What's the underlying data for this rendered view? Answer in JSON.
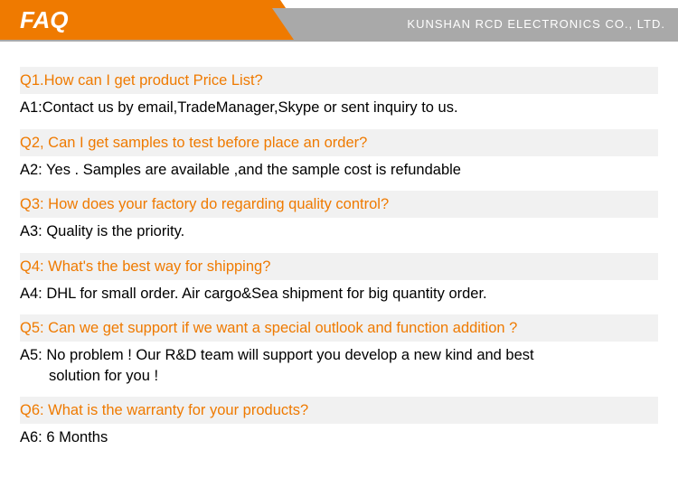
{
  "header": {
    "title": "FAQ",
    "company": "KUNSHAN RCD ELECTRONICS CO., LTD."
  },
  "colors": {
    "accent": "#ef7a00",
    "gray": "#a9a9a9",
    "q_bg": "#f1f1f1",
    "text": "#000000",
    "white": "#ffffff"
  },
  "faqs": [
    {
      "q": "Q1.How can I get product Price List?",
      "a": "A1:Contact us by email,TradeManager,Skype or sent inquiry to us."
    },
    {
      "q": "Q2, Can I get samples to test before place an order?",
      "a": "A2: Yes . Samples are available ,and the sample cost is refundable"
    },
    {
      "q": "Q3: How does your factory do regarding quality control?",
      "a": "A3: Quality is the priority."
    },
    {
      "q": "Q4: What's the best way for shipping?",
      "a": "A4: DHL for small order. Air cargo&Sea shipment for big quantity order."
    },
    {
      "q": "Q5: Can we get support if we want a special outlook and function addition ?",
      "a": "A5: No problem !  Our R&D team will support you develop a new kind and best",
      "a2": "solution for you !"
    },
    {
      "q": "Q6: What is the warranty for your products?",
      "a": "A6: 6 Months"
    }
  ]
}
